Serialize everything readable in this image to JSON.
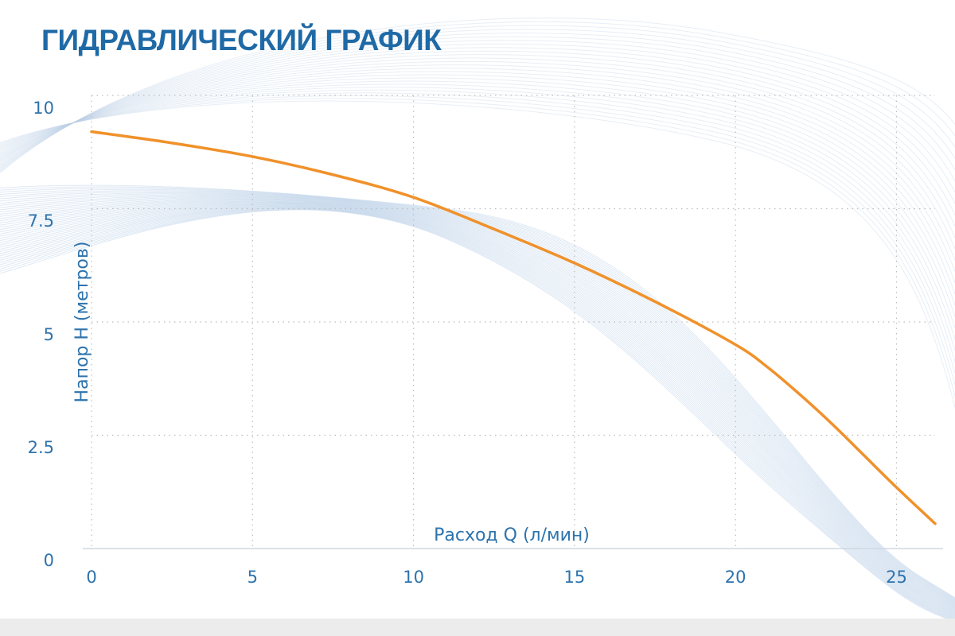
{
  "chart_data": {
    "type": "line",
    "title": "ГИДРАВЛИЧЕСКИЙ ГРАФИК",
    "xlabel": "Расход Q (л/мин)",
    "ylabel": "Напор H (метров)",
    "xlim": [
      0,
      26.2
    ],
    "ylim": [
      0,
      10
    ],
    "x_ticks": [
      0,
      5,
      10,
      15,
      20,
      25
    ],
    "y_ticks": [
      0,
      2.5,
      5,
      7.5,
      10
    ],
    "y_tick_labels": [
      "0",
      "2.5",
      "5",
      "7.5",
      "10"
    ],
    "x_tick_labels": [
      "0",
      "5",
      "10",
      "15",
      "20",
      "25"
    ],
    "grid": true,
    "grid_style": "dotted",
    "series": [
      {
        "color": "#f0912a",
        "x": [
          0,
          2.5,
          5,
          7.5,
          10,
          12.5,
          15,
          17.5,
          20,
          21,
          22,
          23,
          24,
          25,
          26.2
        ],
        "y": [
          9.2,
          8.95,
          8.65,
          8.25,
          7.75,
          7.05,
          6.3,
          5.45,
          4.5,
          4.0,
          3.4,
          2.75,
          2.05,
          1.35,
          0.55
        ]
      }
    ]
  },
  "colors": {
    "title": "#1f6aa6",
    "axis_text": "#2d73ad",
    "curve": "#f0912a",
    "waves": "#b9cfe6",
    "grid": "#bdbdbd",
    "footer": "#ececec"
  }
}
